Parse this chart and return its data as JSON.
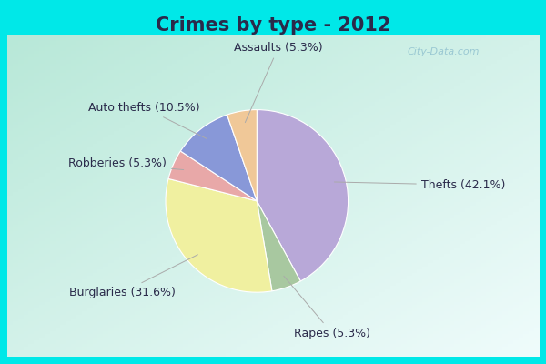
{
  "title": "Crimes by type - 2012",
  "slices": [
    {
      "label": "Thefts (42.1%)",
      "value": 42.1,
      "color": "#b8a8d8"
    },
    {
      "label": "Rapes (5.3%)",
      "value": 5.3,
      "color": "#a8c8a0"
    },
    {
      "label": "Burglaries (31.6%)",
      "value": 31.6,
      "color": "#f0f0a0"
    },
    {
      "label": "Robberies (5.3%)",
      "value": 5.3,
      "color": "#e8a8a8"
    },
    {
      "label": "Auto thefts (10.5%)",
      "value": 10.5,
      "color": "#8898d8"
    },
    {
      "label": "Assaults (5.3%)",
      "value": 5.3,
      "color": "#f0c898"
    }
  ],
  "border_color": "#00e8e8",
  "inner_bg_top_left": "#b8e8d8",
  "inner_bg_bottom_right": "#e8f8f8",
  "title_fontsize": 15,
  "label_fontsize": 9,
  "title_color": "#2a2a4a",
  "label_color": "#2a2a4a",
  "watermark": "City-Data.com",
  "border_width": 8,
  "label_annotations": [
    {
      "idx": 0,
      "xt": 1.38,
      "yt": 0.1,
      "ha": "left"
    },
    {
      "idx": 1,
      "xt": 0.55,
      "yt": -1.28,
      "ha": "center"
    },
    {
      "idx": 2,
      "xt": -1.4,
      "yt": -0.9,
      "ha": "center"
    },
    {
      "idx": 3,
      "xt": -1.45,
      "yt": 0.3,
      "ha": "center"
    },
    {
      "idx": 4,
      "xt": -1.2,
      "yt": 0.82,
      "ha": "center"
    },
    {
      "idx": 5,
      "xt": 0.05,
      "yt": 1.38,
      "ha": "center"
    }
  ]
}
